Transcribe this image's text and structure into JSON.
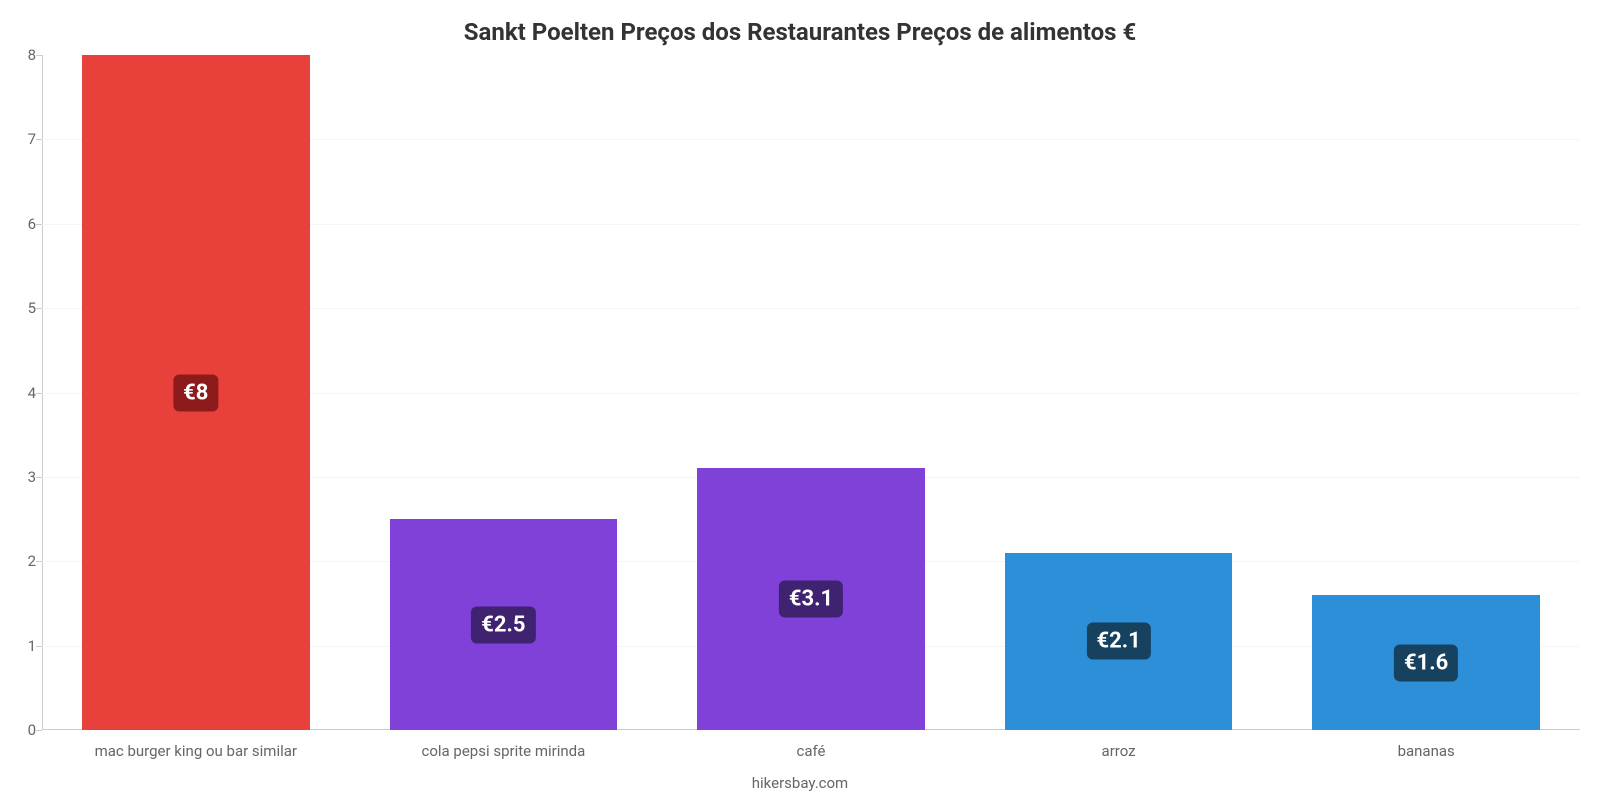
{
  "chart": {
    "type": "bar",
    "title": "Sankt Poelten Preços dos Restaurantes Preços de alimentos €",
    "title_fontsize": 24,
    "title_color": "#333333",
    "credit": "hikersbay.com",
    "credit_fontsize": 15,
    "credit_color": "#666666",
    "background_color": "#ffffff",
    "grid_color": "#f5f5f5",
    "axis_color": "#cccccc",
    "label_color": "#666666",
    "label_fontsize": 15,
    "value_label_fontsize": 22,
    "value_label_color": "#ffffff",
    "bar_width": 0.74,
    "ylim": [
      0,
      8
    ],
    "ytick_step": 1,
    "categories": [
      "mac burger king ou bar similar",
      "cola pepsi sprite mirinda",
      "café",
      "arroz",
      "bananas"
    ],
    "values": [
      8,
      2.5,
      3.1,
      2.1,
      1.6
    ],
    "value_labels": [
      "€8",
      "€2.5",
      "€3.1",
      "€2.1",
      "€1.6"
    ],
    "bar_colors": [
      "#e8403a",
      "#8041d9",
      "#8041d9",
      "#2d8fd8",
      "#2d8fd8"
    ],
    "badge_colors": [
      "#8e1b1b",
      "#3f2370",
      "#3f2370",
      "#164260",
      "#164260"
    ]
  }
}
